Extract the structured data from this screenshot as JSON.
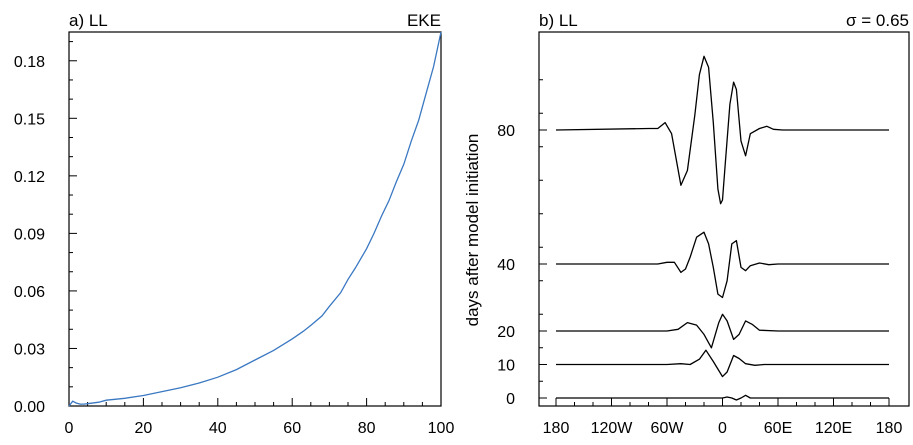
{
  "chart_data": [
    {
      "type": "line",
      "panel_label": "a) LL",
      "right_label": "EKE",
      "xlabel": "",
      "ylabel": "",
      "xlim": [
        0,
        100
      ],
      "ylim": [
        0,
        0.195
      ],
      "x_ticks": [
        0,
        20,
        40,
        60,
        80,
        100
      ],
      "y_ticks": [
        0.0,
        0.03,
        0.06,
        0.09,
        0.12,
        0.15,
        0.18
      ],
      "y_tick_labels": [
        "0.00",
        "0.03",
        "0.06",
        "0.09",
        "0.12",
        "0.15",
        "0.18"
      ],
      "series": [
        {
          "color": "#3a78c2",
          "x": [
            0,
            1,
            2,
            3,
            4,
            5,
            8,
            10,
            15,
            20,
            25,
            30,
            35,
            40,
            45,
            50,
            55,
            60,
            63,
            65,
            68,
            70,
            73,
            75,
            77,
            80,
            82,
            84,
            86,
            88,
            90,
            92,
            94,
            96,
            98,
            100
          ],
          "y": [
            0.0,
            0.0025,
            0.0015,
            0.001,
            0.001,
            0.0012,
            0.002,
            0.003,
            0.004,
            0.0055,
            0.0075,
            0.0095,
            0.012,
            0.015,
            0.019,
            0.024,
            0.029,
            0.035,
            0.039,
            0.042,
            0.047,
            0.052,
            0.059,
            0.066,
            0.072,
            0.082,
            0.09,
            0.099,
            0.107,
            0.117,
            0.126,
            0.138,
            0.149,
            0.163,
            0.177,
            0.195
          ]
        }
      ]
    },
    {
      "type": "line",
      "panel_label": "b) LL",
      "right_label": "σ = 0.65",
      "xlabel": "",
      "ylabel": "days after model initiation",
      "x_ticks": [
        -180,
        -120,
        -60,
        0,
        60,
        120,
        180
      ],
      "x_tick_labels": [
        "180",
        "120W",
        "60W",
        "0",
        "60E",
        "120E",
        "180"
      ],
      "y_ticks": [
        0,
        10,
        20,
        40,
        80
      ],
      "y_tick_labels": [
        "0",
        "10",
        "20",
        "40",
        "80"
      ],
      "series": [
        {
          "day": 0,
          "amplitude": 2,
          "x": [
            -180,
            -10,
            0,
            5,
            10,
            15,
            20,
            25,
            30,
            180
          ],
          "y": [
            0,
            0,
            0,
            0.15,
            0,
            -0.3,
            0,
            0.4,
            0,
            0
          ]
        },
        {
          "day": 10,
          "amplitude": 4.5,
          "x": [
            -180,
            -60,
            -45,
            -35,
            -25,
            -18,
            -10,
            0,
            5,
            12,
            18,
            25,
            35,
            45,
            180
          ],
          "y": [
            0,
            0,
            0.05,
            0,
            0.35,
            0.95,
            0.2,
            -0.8,
            -0.5,
            0.6,
            0.4,
            0.05,
            -0.05,
            0,
            0
          ]
        },
        {
          "day": 20,
          "amplitude": 5,
          "x": [
            -180,
            -60,
            -48,
            -38,
            -28,
            -20,
            -12,
            -4,
            0,
            5,
            12,
            18,
            25,
            32,
            40,
            60,
            180
          ],
          "y": [
            0,
            0,
            0.1,
            0.5,
            0.35,
            -0.2,
            -1.0,
            0.5,
            1.0,
            0.6,
            -0.5,
            -0.2,
            0.6,
            0.4,
            0.05,
            0,
            0
          ]
        },
        {
          "day": 40,
          "amplitude": 10,
          "x": [
            -180,
            -70,
            -60,
            -52,
            -45,
            -40,
            -35,
            -28,
            -20,
            -15,
            -10,
            -5,
            0,
            5,
            10,
            15,
            20,
            25,
            30,
            40,
            50,
            60,
            180
          ],
          "y": [
            0,
            0,
            0.05,
            0.05,
            -0.25,
            -0.15,
            0.2,
            0.8,
            0.95,
            0.6,
            -0.1,
            -0.9,
            -1.0,
            -0.5,
            0.6,
            0.7,
            -0.1,
            -0.2,
            -0.05,
            0.03,
            -0.02,
            0,
            0
          ]
        },
        {
          "day": 80,
          "amplitude": 22,
          "x": [
            -180,
            -80,
            -70,
            -62,
            -55,
            -45,
            -38,
            -30,
            -25,
            -20,
            -15,
            -10,
            -5,
            -2,
            0,
            3,
            8,
            12,
            15,
            20,
            25,
            30,
            40,
            48,
            55,
            65,
            80,
            180
          ],
          "y": [
            0,
            0.02,
            0.02,
            0.1,
            -0.05,
            -0.75,
            -0.55,
            0.2,
            0.75,
            1.0,
            0.85,
            0.1,
            -0.8,
            -1.0,
            -0.95,
            -0.45,
            0.35,
            0.65,
            0.55,
            -0.15,
            -0.35,
            -0.05,
            0.02,
            0.05,
            0.01,
            0,
            0,
            0
          ]
        }
      ]
    }
  ]
}
